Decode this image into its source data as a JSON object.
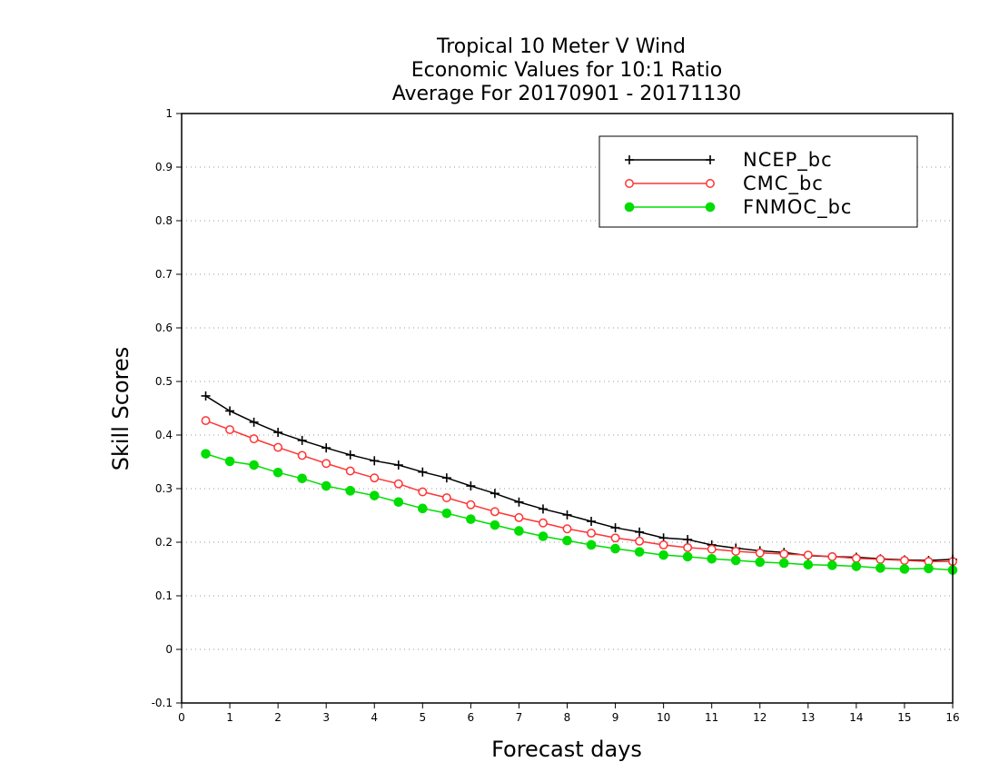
{
  "chart_data": {
    "type": "line",
    "title": [
      "Tropical 10 Meter V Wind",
      "Economic Values for 10:1 Ratio",
      "Average For 20170901 - 20171130"
    ],
    "xlabel": "Forecast days",
    "ylabel": "Skill Scores",
    "xlim": [
      0,
      16
    ],
    "ylim": [
      -0.1,
      1
    ],
    "xticks": [
      "0",
      "1",
      "2",
      "3",
      "4",
      "5",
      "6",
      "7",
      "8",
      "9",
      "10",
      "11",
      "12",
      "13",
      "14",
      "15",
      "16"
    ],
    "yticks": [
      "-0.1",
      "0",
      "0.1",
      "0.2",
      "0.3",
      "0.4",
      "0.5",
      "0.6",
      "0.7",
      "0.8",
      "0.9",
      "1"
    ],
    "grid": "dotted horizontal",
    "legend_position": "top-right",
    "x": [
      0.5,
      1,
      1.5,
      2,
      2.5,
      3,
      3.5,
      4,
      4.5,
      5,
      5.5,
      6,
      6.5,
      7,
      7.5,
      8,
      8.5,
      9,
      9.5,
      10,
      10.5,
      11,
      11.5,
      12,
      12.5,
      13,
      13.5,
      14,
      14.5,
      15,
      15.5,
      16
    ],
    "series": [
      {
        "name": "NCEP_bc",
        "color": "#000000",
        "marker": "plus",
        "values": [
          0.473,
          0.445,
          0.424,
          0.405,
          0.39,
          0.376,
          0.363,
          0.352,
          0.344,
          0.331,
          0.32,
          0.305,
          0.291,
          0.275,
          0.262,
          0.251,
          0.239,
          0.227,
          0.219,
          0.208,
          0.205,
          0.195,
          0.189,
          0.184,
          0.181,
          0.175,
          0.173,
          0.172,
          0.169,
          0.167,
          0.166,
          0.168
        ]
      },
      {
        "name": "CMC_bc",
        "color": "#ff3333",
        "marker": "open-circle",
        "values": [
          0.427,
          0.41,
          0.393,
          0.377,
          0.362,
          0.347,
          0.333,
          0.32,
          0.309,
          0.294,
          0.283,
          0.27,
          0.257,
          0.246,
          0.236,
          0.225,
          0.217,
          0.208,
          0.202,
          0.195,
          0.19,
          0.187,
          0.183,
          0.18,
          0.178,
          0.176,
          0.173,
          0.17,
          0.168,
          0.166,
          0.164,
          0.164
        ]
      },
      {
        "name": "FNMOC_bc",
        "color": "#00dd00",
        "marker": "filled-circle",
        "values": [
          0.365,
          0.351,
          0.344,
          0.33,
          0.319,
          0.305,
          0.296,
          0.287,
          0.275,
          0.263,
          0.254,
          0.243,
          0.232,
          0.221,
          0.211,
          0.203,
          0.195,
          0.188,
          0.182,
          0.176,
          0.173,
          0.169,
          0.166,
          0.163,
          0.161,
          0.158,
          0.157,
          0.155,
          0.152,
          0.15,
          0.151,
          0.148
        ]
      }
    ]
  }
}
